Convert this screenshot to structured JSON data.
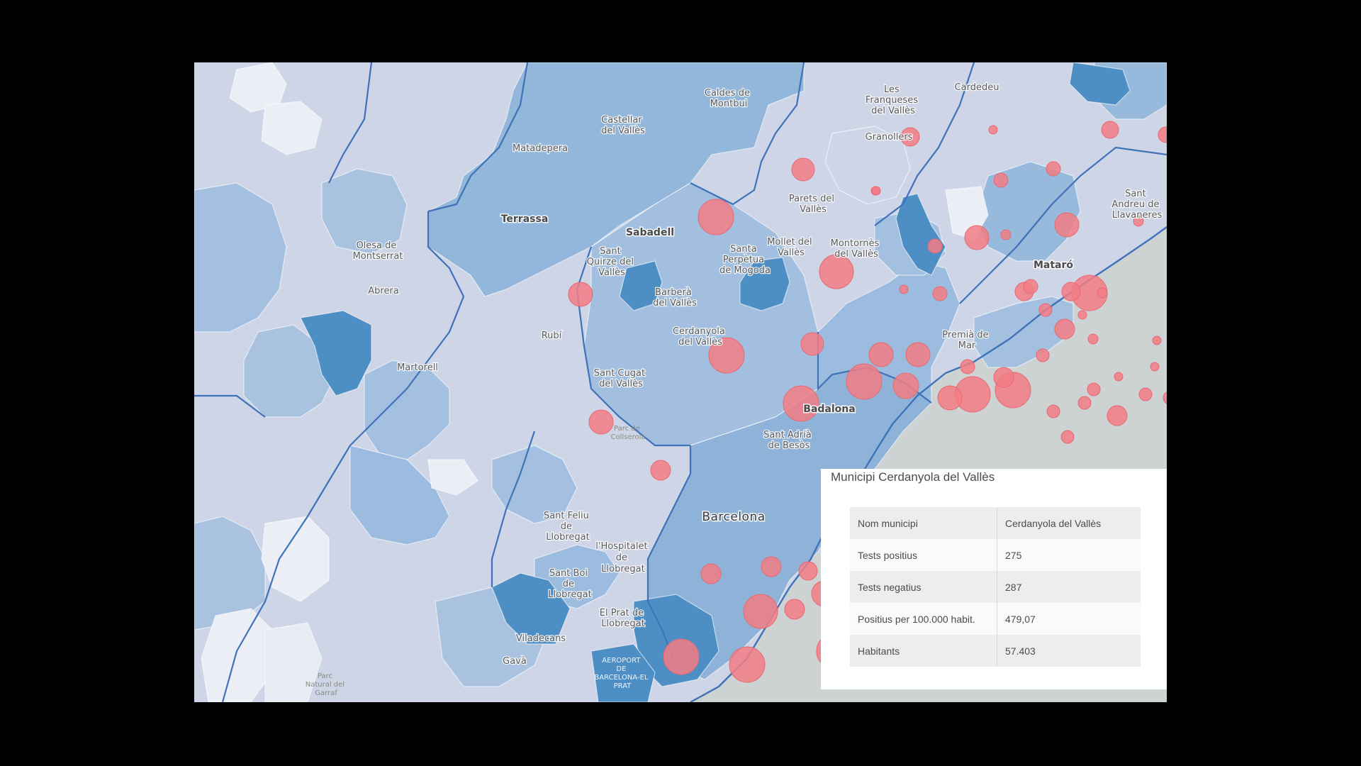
{
  "map": {
    "labels": {
      "terrassa": "Terrassa",
      "sabadell": "Sabadell",
      "badalona": "Badalona",
      "mataro": "Mataró",
      "barcelona": "Barcelona",
      "hospitalet": [
        "l'Hospitalet",
        "de",
        "Llobregat"
      ],
      "castellar": [
        "Castellar",
        "del Vallès"
      ],
      "caldes": [
        "Caldes de",
        "Montbui"
      ],
      "franqueses": [
        "Les",
        "Franqueses",
        "del Vallès"
      ],
      "cardedeu": "Cardedeu",
      "granollers": "Granollers",
      "matadepera": "Matadepera",
      "parets": [
        "Parets del",
        "Vallès"
      ],
      "sant_andreu_llavaneres": [
        "Sant",
        "Andreu de",
        "Llavaneres"
      ],
      "olesa": [
        "Olesa de",
        "Montserrat"
      ],
      "sant_quirze": [
        "Sant",
        "Quirze del",
        "Vallès"
      ],
      "santa_perpetua": [
        "Santa",
        "Perpètua",
        "de Mogoda"
      ],
      "mollet": [
        "Mollet del",
        "Vallès"
      ],
      "montornes": [
        "Montornès",
        "del Vallès"
      ],
      "abrera": "Abrera",
      "barbera": [
        "Barberà",
        "del Vallès"
      ],
      "rubi": "Rubí",
      "cerdanyola": [
        "Cerdanyola",
        "del Vallès"
      ],
      "premia": [
        "Premià de",
        "Mar"
      ],
      "martorell": "Martorell",
      "sant_cugat": [
        "Sant Cugat",
        "del Vallès"
      ],
      "parc_collserola": [
        "Parc de",
        "Collserola"
      ],
      "sant_adria": [
        "Sant Adrià",
        "de Besòs"
      ],
      "sant_feliu": [
        "Sant Feliu",
        "de",
        "Llobregat"
      ],
      "sant_boi": [
        "Sant Boi",
        "de",
        "Llobregat"
      ],
      "el_prat": [
        "El Prat de",
        "Llobregat"
      ],
      "viladecans": "Viladecans",
      "gava": "Gavà",
      "airport": [
        "AEROPORT",
        "DE",
        "BARCELONA-EL",
        "PRAT"
      ],
      "parc_garraf": [
        "Parc",
        "Natural del",
        "Garraf"
      ]
    }
  },
  "popup": {
    "title": "Municipi Cerdanyola del Vallès",
    "rows": [
      {
        "key": "Nom municipi",
        "value": "Cerdanyola del Vallès"
      },
      {
        "key": "Tests positius",
        "value": "275"
      },
      {
        "key": "Tests negatius",
        "value": "287"
      },
      {
        "key": "Positius per 100.000 habit.",
        "value": "479,07"
      },
      {
        "key": "Habitants",
        "value": "57.403"
      }
    ]
  },
  "colors": {
    "sea": "#cdd2d3",
    "very_light": "#eceef6",
    "light": "#cdd5e7",
    "mid_light": "#a9c2df",
    "mid": "#93b7da",
    "dark": "#4d8ec4",
    "bubble": "#f27d85",
    "border": "#3f72b8",
    "popup_bg": "#ffffff"
  }
}
